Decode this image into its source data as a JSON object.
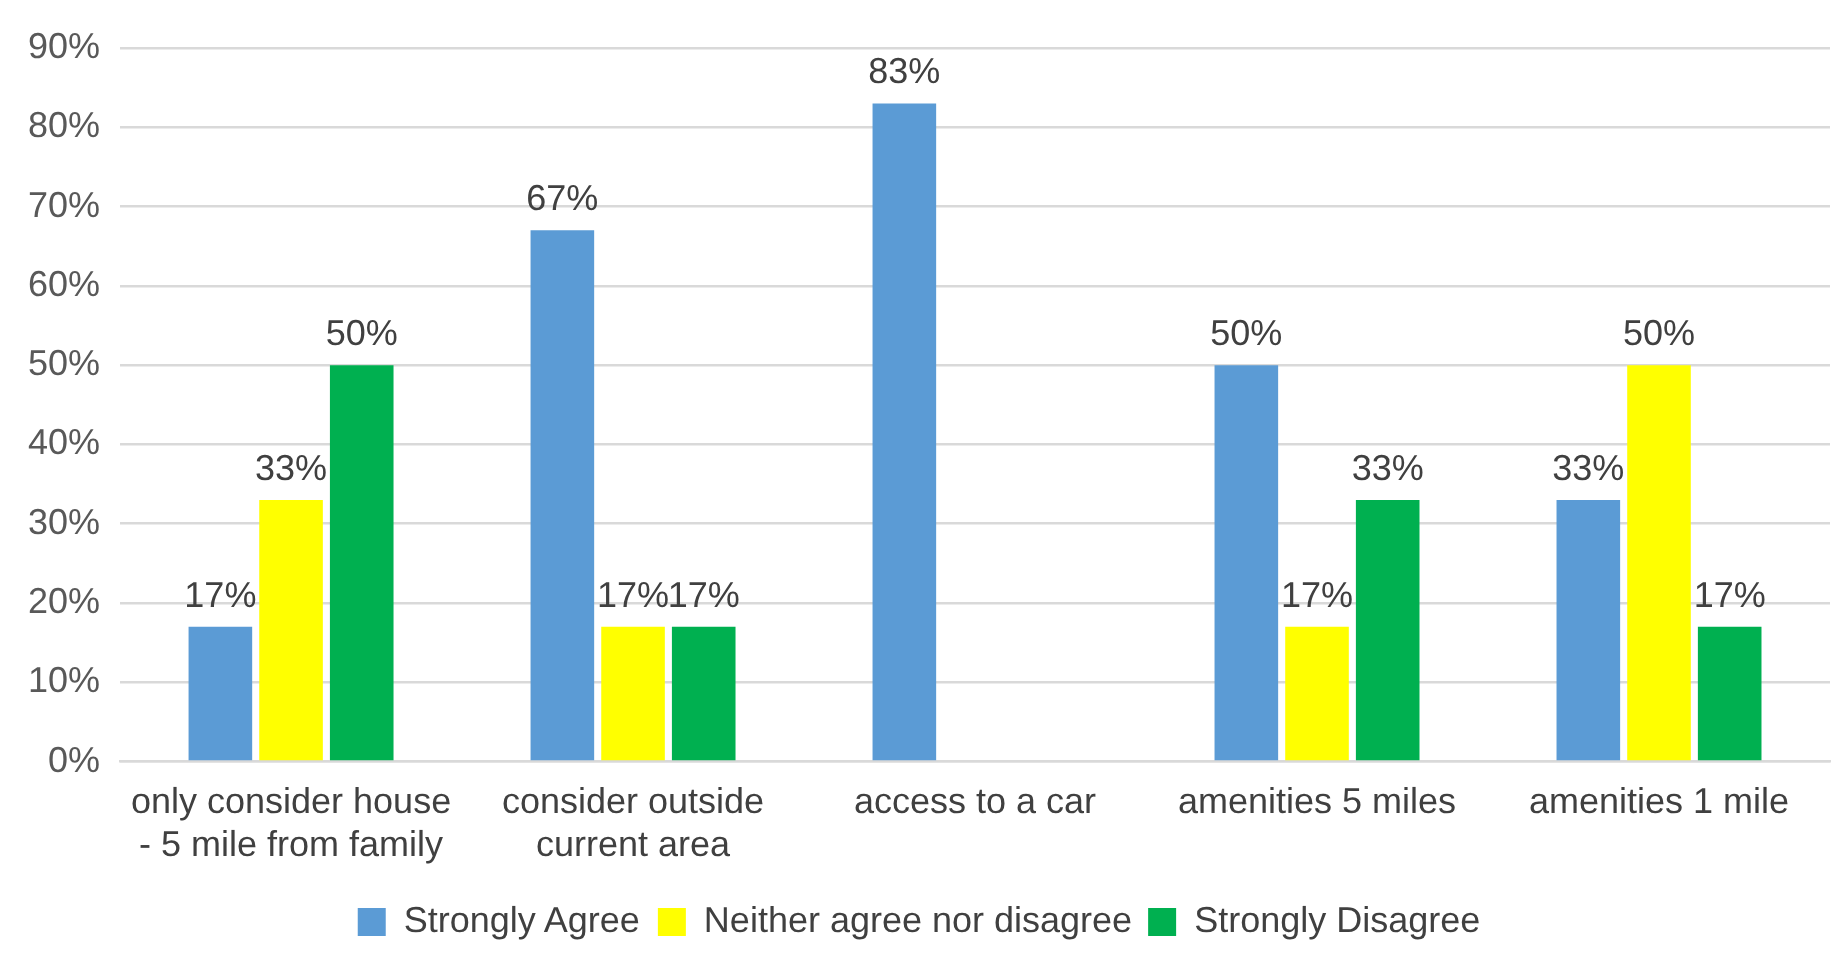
{
  "chart_data": {
    "type": "bar",
    "categories": [
      "only consider house - 5 mile from family",
      "consider outside current area",
      "access to a car",
      "amenities 5 miles",
      "amenities 1 mile"
    ],
    "series": [
      {
        "name": "Strongly Agree",
        "color": "#5b9bd5",
        "values": [
          17,
          67,
          83,
          50,
          33
        ],
        "value_labels": [
          "17%",
          "67%",
          "83%",
          "50%",
          "33%"
        ]
      },
      {
        "name": "Neither agree nor disagree",
        "color": "#ffff00",
        "values": [
          33,
          17,
          null,
          17,
          50
        ],
        "value_labels": [
          "33%",
          "17%",
          null,
          "17%",
          "50%"
        ]
      },
      {
        "name": "Strongly Disagree",
        "color": "#00b050",
        "values": [
          50,
          17,
          null,
          33,
          17
        ],
        "value_labels": [
          "50%",
          "17%",
          null,
          "33%",
          "17%"
        ]
      }
    ],
    "ylim": [
      0,
      90
    ],
    "yticks": [
      {
        "value": 0,
        "label": "0%"
      },
      {
        "value": 10,
        "label": "10%"
      },
      {
        "value": 20,
        "label": "20%"
      },
      {
        "value": 30,
        "label": "30%"
      },
      {
        "value": 40,
        "label": "40%"
      },
      {
        "value": 50,
        "label": "50%"
      },
      {
        "value": 60,
        "label": "60%"
      },
      {
        "value": 70,
        "label": "70%"
      },
      {
        "value": 80,
        "label": "80%"
      },
      {
        "value": 90,
        "label": "90%"
      }
    ],
    "grid": "y",
    "legend": "bottom"
  }
}
